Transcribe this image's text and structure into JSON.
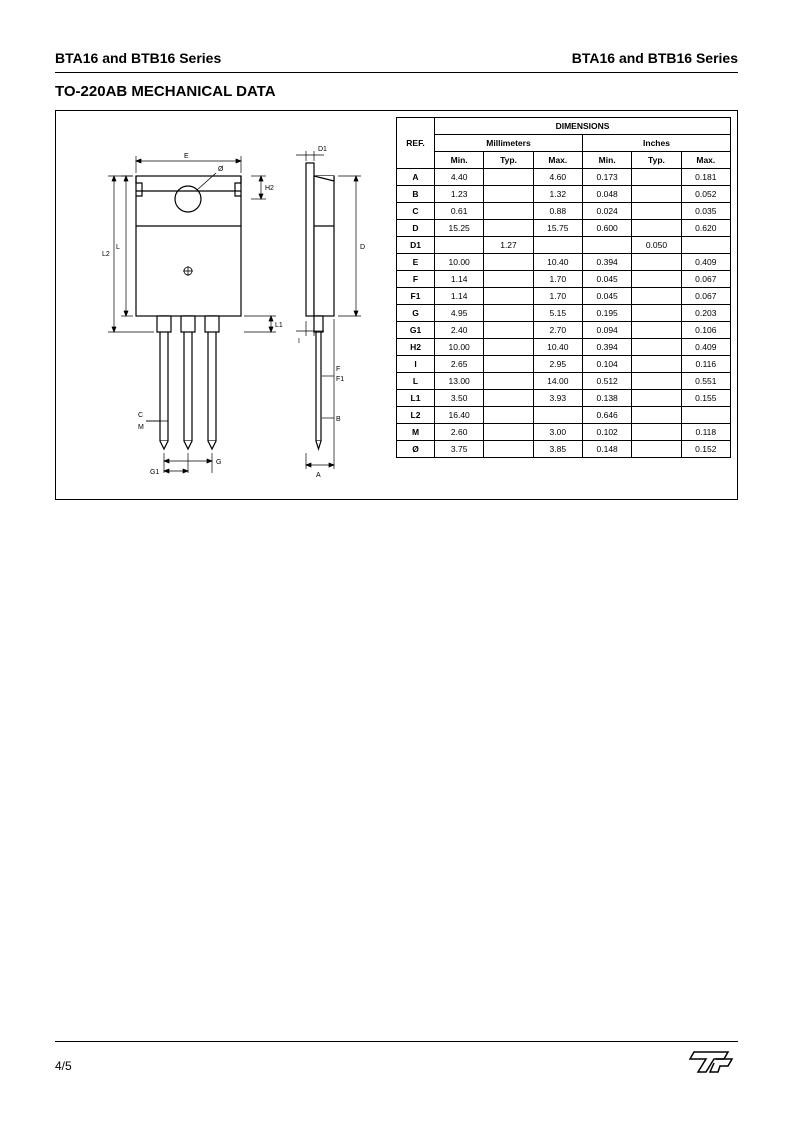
{
  "header": {
    "left": "BTA16 and BTB16 Series",
    "right": "BTA16 and BTB16 Series"
  },
  "section_titles": {
    "mechdata": "TO-220AB MECHANICAL DATA"
  },
  "table": {
    "header": {
      "ref": "REF.",
      "dimensions": "DIMENSIONS",
      "mm": "Millimeters",
      "in": "Inches",
      "min": "Min.",
      "typ": "Typ.",
      "max": "Max."
    },
    "rows": [
      {
        "ref": "A",
        "mm_min": "4.40",
        "mm_typ": "",
        "mm_max": "4.60",
        "in_min": "0.173",
        "in_typ": "",
        "in_max": "0.181"
      },
      {
        "ref": "B",
        "mm_min": "1.23",
        "mm_typ": "",
        "mm_max": "1.32",
        "in_min": "0.048",
        "in_typ": "",
        "in_max": "0.052"
      },
      {
        "ref": "C",
        "mm_min": "0.61",
        "mm_typ": "",
        "mm_max": "0.88",
        "in_min": "0.024",
        "in_typ": "",
        "in_max": "0.035"
      },
      {
        "ref": "D",
        "mm_min": "15.25",
        "mm_typ": "",
        "mm_max": "15.75",
        "in_min": "0.600",
        "in_typ": "",
        "in_max": "0.620"
      },
      {
        "ref": "D1",
        "mm_min": "",
        "mm_typ": "1.27",
        "mm_max": "",
        "in_min": "",
        "in_typ": "0.050",
        "in_max": ""
      },
      {
        "ref": "E",
        "mm_min": "10.00",
        "mm_typ": "",
        "mm_max": "10.40",
        "in_min": "0.394",
        "in_typ": "",
        "in_max": "0.409"
      },
      {
        "ref": "F",
        "mm_min": "1.14",
        "mm_typ": "",
        "mm_max": "1.70",
        "in_min": "0.045",
        "in_typ": "",
        "in_max": "0.067"
      },
      {
        "ref": "F1",
        "mm_min": "1.14",
        "mm_typ": "",
        "mm_max": "1.70",
        "in_min": "0.045",
        "in_typ": "",
        "in_max": "0.067"
      },
      {
        "ref": "G",
        "mm_min": "4.95",
        "mm_typ": "",
        "mm_max": "5.15",
        "in_min": "0.195",
        "in_typ": "",
        "in_max": "0.203"
      },
      {
        "ref": "G1",
        "mm_min": "2.40",
        "mm_typ": "",
        "mm_max": "2.70",
        "in_min": "0.094",
        "in_typ": "",
        "in_max": "0.106"
      },
      {
        "ref": "H2",
        "mm_min": "10.00",
        "mm_typ": "",
        "mm_max": "10.40",
        "in_min": "0.394",
        "in_typ": "",
        "in_max": "0.409"
      },
      {
        "ref": "I",
        "mm_min": "2.65",
        "mm_typ": "",
        "mm_max": "2.95",
        "in_min": "0.104",
        "in_typ": "",
        "in_max": "0.116"
      },
      {
        "ref": "L",
        "mm_min": "13.00",
        "mm_typ": "",
        "mm_max": "14.00",
        "in_min": "0.512",
        "in_typ": "",
        "in_max": "0.551"
      },
      {
        "ref": "L1",
        "mm_min": "3.50",
        "mm_typ": "",
        "mm_max": "3.93",
        "in_min": "0.138",
        "in_typ": "",
        "in_max": "0.155"
      },
      {
        "ref": "L2",
        "mm_min": "16.40",
        "mm_typ": "",
        "mm_max": "",
        "in_min": "0.646",
        "in_typ": "",
        "in_max": ""
      },
      {
        "ref": "M",
        "mm_min": "2.60",
        "mm_typ": "",
        "mm_max": "3.00",
        "in_min": "0.102",
        "in_typ": "",
        "in_max": "0.118"
      },
      {
        "ref": "Ø",
        "mm_min": "3.75",
        "mm_typ": "",
        "mm_max": "3.85",
        "in_min": "0.148",
        "in_typ": "",
        "in_max": "0.152"
      }
    ]
  },
  "drawing": {
    "labels": {
      "E": "E",
      "H2": "H2",
      "L2": "L2",
      "L": "L",
      "L1": "L1",
      "G": "G",
      "G1": "G1",
      "C": "C",
      "M": "M",
      "D": "D",
      "D1": "D1",
      "A": "A",
      "I": "I",
      "F": "F",
      "F1": "F1",
      "B": "B",
      "phi": "Ø"
    },
    "colors": {
      "stroke": "#000000",
      "fill": "#ffffff"
    }
  },
  "footer": {
    "page_num": "4/5",
    "logo_text": "ST"
  }
}
